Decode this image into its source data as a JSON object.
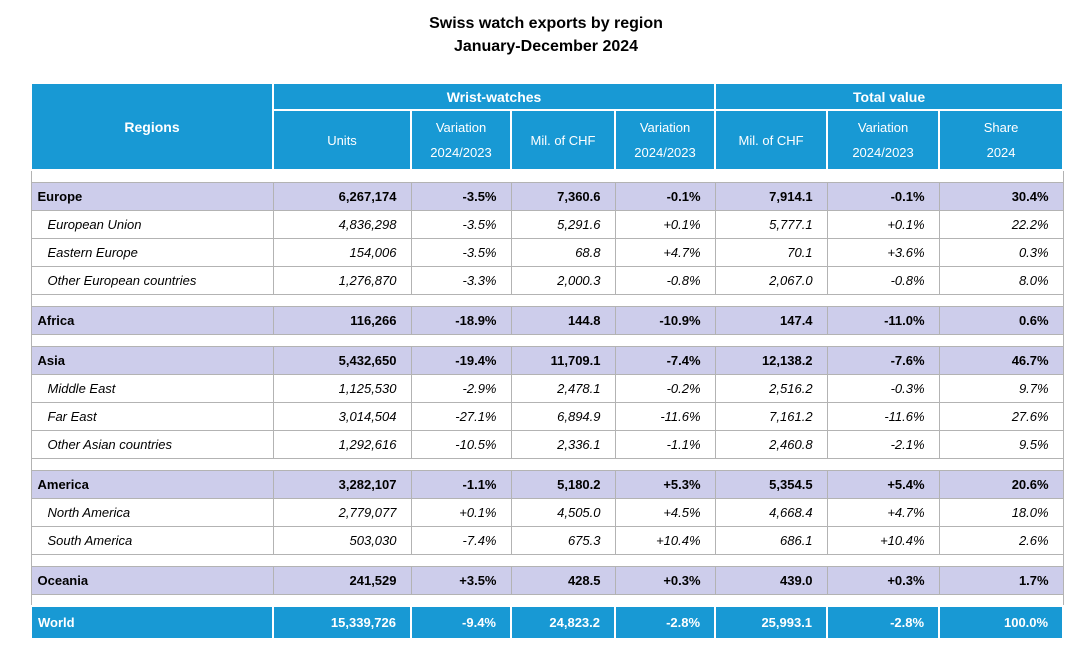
{
  "title": {
    "line1": "Swiss watch exports by region",
    "line2": "January-December 2024"
  },
  "table": {
    "regions_header": "Regions",
    "groups": [
      {
        "label": "Wrist-watches"
      },
      {
        "label": "Total value"
      }
    ],
    "columns": [
      {
        "key": "units",
        "line1": "Units",
        "line2": ""
      },
      {
        "key": "ww-variation",
        "line1": "Variation",
        "line2": "2024/2023"
      },
      {
        "key": "ww-chf",
        "line1": "Mil. of CHF",
        "line2": ""
      },
      {
        "key": "ww-chf-variation",
        "line1": "Variation",
        "line2": "2024/2023"
      },
      {
        "key": "tv-chf",
        "line1": "Mil. of CHF",
        "line2": ""
      },
      {
        "key": "tv-variation",
        "line1": "Variation",
        "line2": "2024/2023"
      },
      {
        "key": "share",
        "line1": "Share",
        "line2": "2024"
      }
    ],
    "rows": [
      {
        "type": "spacer"
      },
      {
        "type": "continent",
        "region": "Europe",
        "values": [
          "6,267,174",
          "-3.5%",
          "7,360.6",
          "-0.1%",
          "7,914.1",
          "-0.1%",
          "30.4%"
        ]
      },
      {
        "type": "sub",
        "region": "European Union",
        "values": [
          "4,836,298",
          "-3.5%",
          "5,291.6",
          "+0.1%",
          "5,777.1",
          "+0.1%",
          "22.2%"
        ]
      },
      {
        "type": "sub",
        "region": "Eastern Europe",
        "values": [
          "154,006",
          "-3.5%",
          "68.8",
          "+4.7%",
          "70.1",
          "+3.6%",
          "0.3%"
        ]
      },
      {
        "type": "sub",
        "region": "Other European countries",
        "values": [
          "1,276,870",
          "-3.3%",
          "2,000.3",
          "-0.8%",
          "2,067.0",
          "-0.8%",
          "8.0%"
        ]
      },
      {
        "type": "spacer"
      },
      {
        "type": "continent",
        "region": "Africa",
        "values": [
          "116,266",
          "-18.9%",
          "144.8",
          "-10.9%",
          "147.4",
          "-11.0%",
          "0.6%"
        ]
      },
      {
        "type": "spacer"
      },
      {
        "type": "continent",
        "region": "Asia",
        "values": [
          "5,432,650",
          "-19.4%",
          "11,709.1",
          "-7.4%",
          "12,138.2",
          "-7.6%",
          "46.7%"
        ]
      },
      {
        "type": "sub",
        "region": "Middle East",
        "values": [
          "1,125,530",
          "-2.9%",
          "2,478.1",
          "-0.2%",
          "2,516.2",
          "-0.3%",
          "9.7%"
        ]
      },
      {
        "type": "sub",
        "region": "Far East",
        "values": [
          "3,014,504",
          "-27.1%",
          "6,894.9",
          "-11.6%",
          "7,161.2",
          "-11.6%",
          "27.6%"
        ]
      },
      {
        "type": "sub",
        "region": "Other Asian countries",
        "values": [
          "1,292,616",
          "-10.5%",
          "2,336.1",
          "-1.1%",
          "2,460.8",
          "-2.1%",
          "9.5%"
        ]
      },
      {
        "type": "spacer"
      },
      {
        "type": "continent",
        "region": "America",
        "values": [
          "3,282,107",
          "-1.1%",
          "5,180.2",
          "+5.3%",
          "5,354.5",
          "+5.4%",
          "20.6%"
        ]
      },
      {
        "type": "sub",
        "region": "North America",
        "values": [
          "2,779,077",
          "+0.1%",
          "4,505.0",
          "+4.5%",
          "4,668.4",
          "+4.7%",
          "18.0%"
        ]
      },
      {
        "type": "sub",
        "region": "South America",
        "values": [
          "503,030",
          "-7.4%",
          "675.3",
          "+10.4%",
          "686.1",
          "+10.4%",
          "2.6%"
        ]
      },
      {
        "type": "spacer"
      },
      {
        "type": "continent",
        "region": "Oceania",
        "values": [
          "241,529",
          "+3.5%",
          "428.5",
          "+0.3%",
          "439.0",
          "+0.3%",
          "1.7%"
        ]
      },
      {
        "type": "spacer"
      },
      {
        "type": "world",
        "region": "World",
        "values": [
          "15,339,726",
          "-9.4%",
          "24,823.2",
          "-2.8%",
          "25,993.1",
          "-2.8%",
          "100.0%"
        ]
      }
    ]
  },
  "colors": {
    "header_blue": "#1899d4",
    "continent_row": "#cdcdeb",
    "grid_line": "#b3b3b3",
    "header_text": "#ffffff",
    "body_text": "#000000"
  },
  "chart_data": {
    "type": "table",
    "title": "Swiss watch exports by region",
    "subtitle": "January-December 2024",
    "column_groups": [
      "Wrist-watches",
      "Total value"
    ],
    "columns": [
      "Region",
      "Wrist-watches Units",
      "Wrist-watches Variation 2024/2023 (%)",
      "Wrist-watches Mil. of CHF",
      "Wrist-watches CHF Variation 2024/2023 (%)",
      "Total value Mil. of CHF",
      "Total value Variation 2024/2023 (%)",
      "Share 2024 (%)"
    ],
    "rows": [
      [
        "Europe",
        6267174,
        -3.5,
        7360.6,
        -0.1,
        7914.1,
        -0.1,
        30.4
      ],
      [
        "European Union",
        4836298,
        -3.5,
        5291.6,
        0.1,
        5777.1,
        0.1,
        22.2
      ],
      [
        "Eastern Europe",
        154006,
        -3.5,
        68.8,
        4.7,
        70.1,
        3.6,
        0.3
      ],
      [
        "Other European countries",
        1276870,
        -3.3,
        2000.3,
        -0.8,
        2067.0,
        -0.8,
        8.0
      ],
      [
        "Africa",
        116266,
        -18.9,
        144.8,
        -10.9,
        147.4,
        -11.0,
        0.6
      ],
      [
        "Asia",
        5432650,
        -19.4,
        11709.1,
        -7.4,
        12138.2,
        -7.6,
        46.7
      ],
      [
        "Middle East",
        1125530,
        -2.9,
        2478.1,
        -0.2,
        2516.2,
        -0.3,
        9.7
      ],
      [
        "Far East",
        3014504,
        -27.1,
        6894.9,
        -11.6,
        7161.2,
        -11.6,
        27.6
      ],
      [
        "Other Asian countries",
        1292616,
        -10.5,
        2336.1,
        -1.1,
        2460.8,
        -2.1,
        9.5
      ],
      [
        "America",
        3282107,
        -1.1,
        5180.2,
        5.3,
        5354.5,
        5.4,
        20.6
      ],
      [
        "North America",
        2779077,
        0.1,
        4505.0,
        4.5,
        4668.4,
        4.7,
        18.0
      ],
      [
        "South America",
        503030,
        -7.4,
        675.3,
        10.4,
        686.1,
        10.4,
        2.6
      ],
      [
        "Oceania",
        241529,
        3.5,
        428.5,
        0.3,
        439.0,
        0.3,
        1.7
      ],
      [
        "World",
        15339726,
        -9.4,
        24823.2,
        -2.8,
        25993.1,
        -2.8,
        100.0
      ]
    ]
  }
}
